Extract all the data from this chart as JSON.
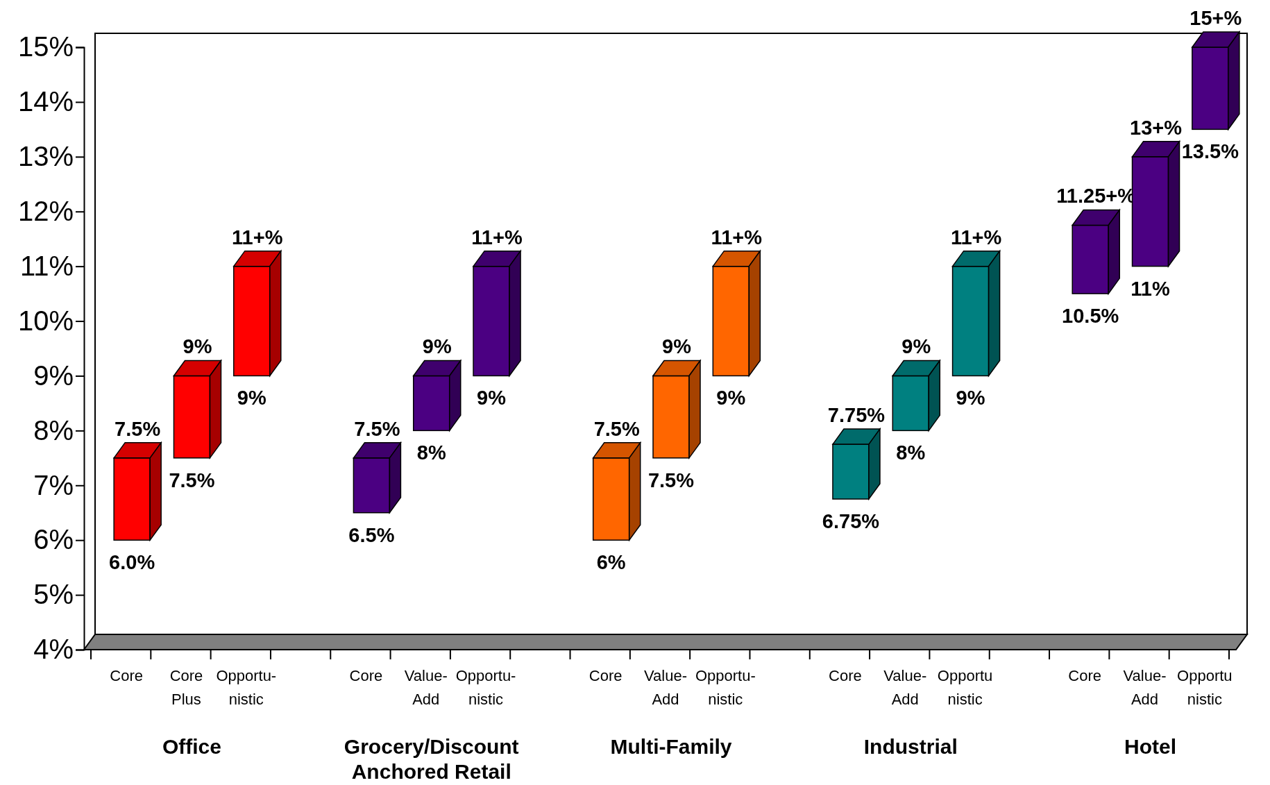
{
  "chart_data": {
    "type": "bar",
    "categories": [
      "Core",
      "Core\nPlus",
      "Opportu-\nnistic",
      "Core",
      "Value-\nAdd",
      "Opportu-\nnistic",
      "Core",
      "Value-\nAdd",
      "Opportu-\nnistic",
      "Core",
      "Value-\nAdd",
      "Opportu\nnistic",
      "Core",
      "Value-\nAdd",
      "Opportu\nnistic"
    ],
    "base": [
      6,
      7.5,
      9,
      6.5,
      8,
      9,
      6,
      7.5,
      9,
      6.75,
      8,
      9,
      10.5,
      11,
      13.5
    ],
    "values": [
      1.5,
      1.5,
      2,
      1,
      1,
      2,
      1.5,
      1.5,
      2,
      1,
      1,
      2,
      1.25,
      2,
      1.5
    ],
    "colors": [
      "#ff0000",
      "#ff0000",
      "#ff0000",
      "#4b0082",
      "#4b0082",
      "#4b0082",
      "#ff6600",
      "#ff6600",
      "#ff6600",
      "#008080",
      "#008080",
      "#008080",
      "#4b0082",
      "#4b0082",
      "#4b0082"
    ],
    "value_labels": [
      "7.5%",
      "9%",
      "11+%",
      "7.5%",
      "9%",
      "11+%",
      "7.5%",
      "9%",
      "11+%",
      "7.75%",
      "9%",
      "11+%",
      "11.25+%",
      "13+%",
      "15+%"
    ],
    "ylim": [
      4,
      15
    ],
    "yticks": [
      {
        "value": 4,
        "label": "4%"
      },
      {
        "value": 5,
        "label": "5%"
      },
      {
        "value": 6,
        "label": "6%"
      },
      {
        "value": 7,
        "label": "7%"
      },
      {
        "value": 8,
        "label": "8%"
      },
      {
        "value": 9,
        "label": "9%"
      },
      {
        "value": 10,
        "label": "10%"
      },
      {
        "value": 11,
        "label": "11%"
      },
      {
        "value": 12,
        "label": "12%"
      },
      {
        "value": 13,
        "label": "13%"
      },
      {
        "value": 14,
        "label": "14%"
      },
      {
        "value": 15,
        "label": "15%"
      }
    ],
    "grid": false,
    "annotations": [
      {
        "text": "6.0%",
        "y": 6
      },
      {
        "text": "7.5%",
        "y": 7.5
      },
      {
        "text": "9%",
        "y": 9
      },
      {
        "text": "6.5%",
        "y": 6.5
      },
      {
        "text": "8%",
        "y": 8
      },
      {
        "text": "9%",
        "y": 9
      },
      {
        "text": "6%",
        "y": 6
      },
      {
        "text": "7.5%",
        "y": 7.5
      },
      {
        "text": "9%",
        "y": 9
      },
      {
        "text": "6.75%",
        "y": 6.75
      },
      {
        "text": "8%",
        "y": 8
      },
      {
        "text": "9%",
        "y": 9
      },
      {
        "text": "10.5%",
        "y": 10.5
      },
      {
        "text": "11%",
        "y": 11
      },
      {
        "text": "13.5%",
        "y": 13.5
      },
      "Office",
      "Grocery/Discount\nAnchored Retail",
      "Multi-Family",
      "Industrial",
      "Hotel"
    ]
  }
}
